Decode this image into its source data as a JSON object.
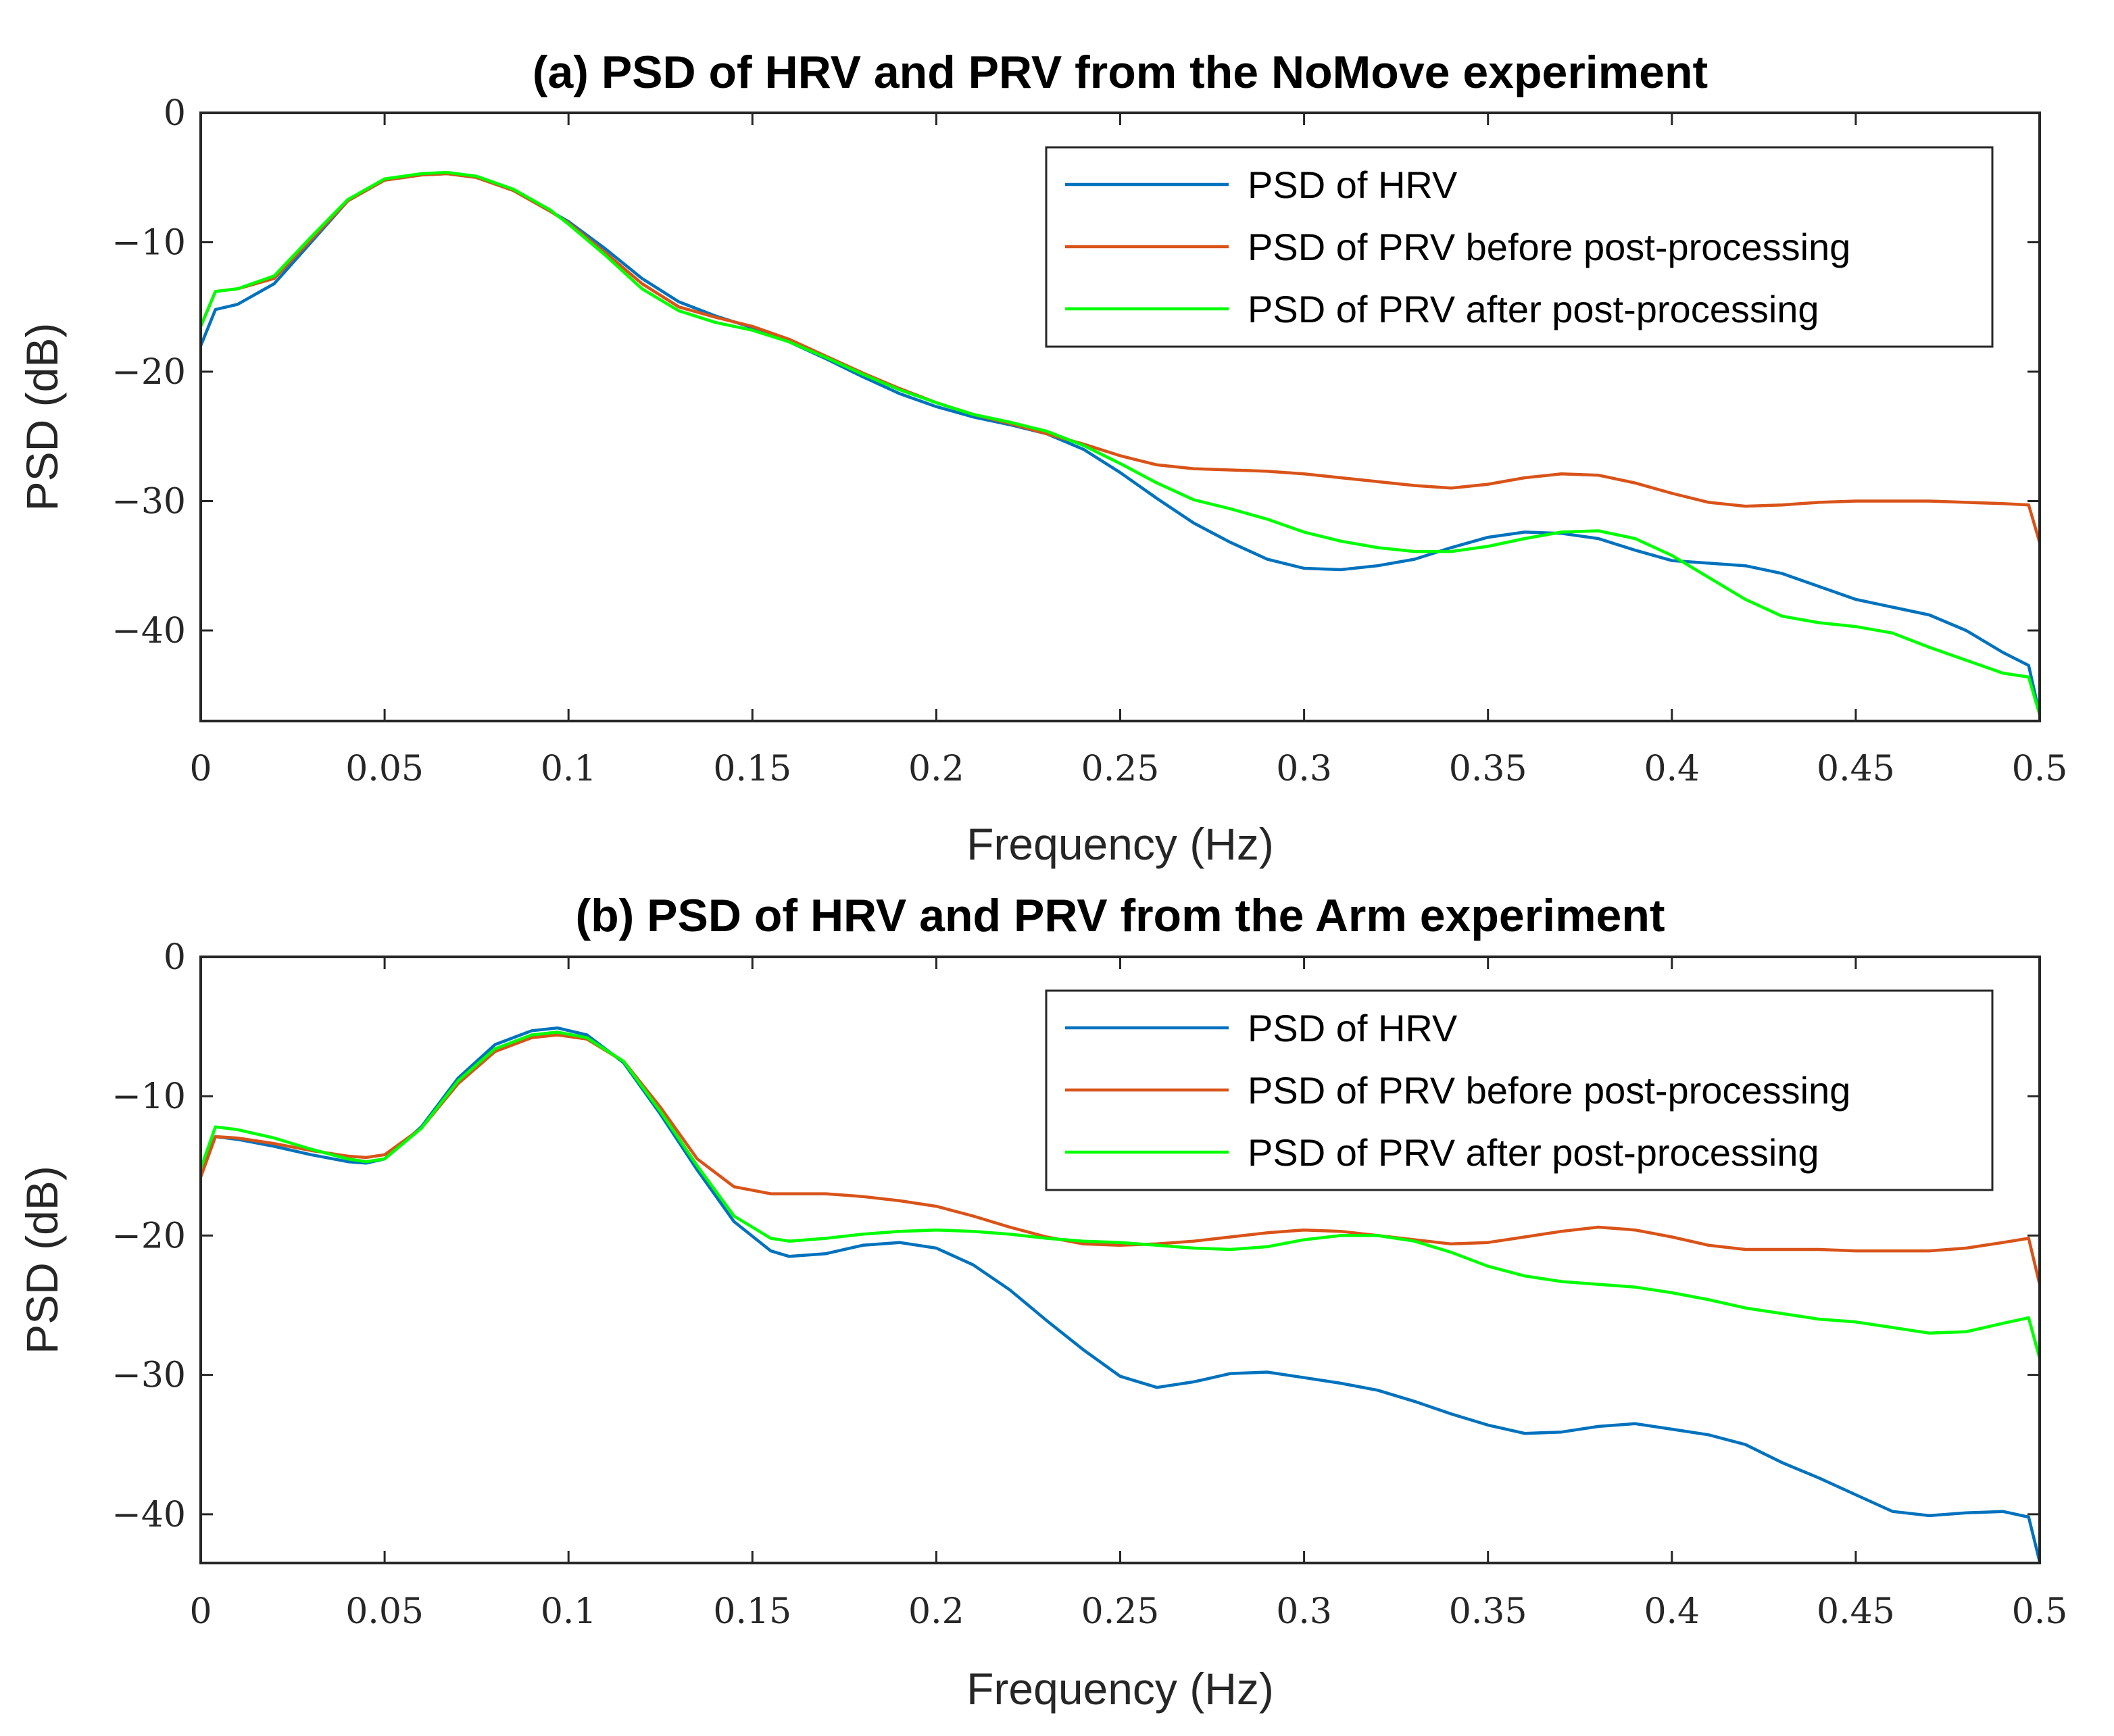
{
  "chart_data": [
    {
      "type": "line",
      "title": "(a) PSD of HRV and PRV from the NoMove experiment",
      "xlabel": "Frequency (Hz)",
      "ylabel": "PSD (dB)",
      "xlim": [
        0,
        0.5
      ],
      "ylim": [
        -47,
        0
      ],
      "xticks": [
        0,
        0.05,
        0.1,
        0.15,
        0.2,
        0.25,
        0.3,
        0.35,
        0.4,
        0.45,
        0.5
      ],
      "xtick_labels": [
        "0",
        "0.05",
        "0.1",
        "0.15",
        "0.2",
        "0.25",
        "0.3",
        "0.35",
        "0.4",
        "0.45",
        "0.5"
      ],
      "yticks": [
        0,
        -10,
        -20,
        -30,
        -40
      ],
      "ytick_labels": [
        "0",
        "−10",
        "−20",
        "−30",
        "−40"
      ],
      "legend_position": "top-right",
      "series": [
        {
          "name": "PSD of HRV",
          "color": "#0072BD",
          "x": [
            0,
            0.004,
            0.01,
            0.02,
            0.03,
            0.04,
            0.05,
            0.06,
            0.067,
            0.075,
            0.085,
            0.095,
            0.1,
            0.11,
            0.12,
            0.13,
            0.14,
            0.15,
            0.16,
            0.17,
            0.18,
            0.19,
            0.2,
            0.21,
            0.22,
            0.23,
            0.24,
            0.25,
            0.26,
            0.27,
            0.28,
            0.29,
            0.3,
            0.31,
            0.32,
            0.33,
            0.34,
            0.35,
            0.36,
            0.37,
            0.38,
            0.39,
            0.4,
            0.41,
            0.42,
            0.43,
            0.44,
            0.45,
            0.46,
            0.47,
            0.48,
            0.49,
            0.497,
            0.5
          ],
          "y": [
            -18,
            -15.2,
            -14.8,
            -13.2,
            -10,
            -6.8,
            -5.2,
            -4.8,
            -4.7,
            -5,
            -6,
            -7.6,
            -8.4,
            -10.5,
            -12.8,
            -14.6,
            -15.7,
            -16.6,
            -17.7,
            -19,
            -20.4,
            -21.7,
            -22.7,
            -23.5,
            -24.1,
            -24.8,
            -26,
            -27.8,
            -29.8,
            -31.7,
            -33.2,
            -34.5,
            -35.2,
            -35.3,
            -35,
            -34.5,
            -33.6,
            -32.8,
            -32.4,
            -32.5,
            -32.9,
            -33.8,
            -34.6,
            -34.8,
            -35,
            -35.6,
            -36.6,
            -37.6,
            -38.2,
            -38.8,
            -40,
            -41.7,
            -42.7,
            -46.5
          ]
        },
        {
          "name": "PSD of PRV before post-processing",
          "color": "#D95319",
          "x": [
            0,
            0.004,
            0.01,
            0.02,
            0.03,
            0.04,
            0.05,
            0.06,
            0.067,
            0.075,
            0.085,
            0.095,
            0.1,
            0.11,
            0.12,
            0.13,
            0.14,
            0.15,
            0.16,
            0.17,
            0.18,
            0.19,
            0.2,
            0.21,
            0.22,
            0.23,
            0.24,
            0.25,
            0.26,
            0.27,
            0.28,
            0.29,
            0.3,
            0.31,
            0.32,
            0.33,
            0.34,
            0.35,
            0.36,
            0.37,
            0.38,
            0.39,
            0.4,
            0.41,
            0.42,
            0.43,
            0.44,
            0.45,
            0.46,
            0.47,
            0.48,
            0.49,
            0.497,
            0.5
          ],
          "y": [
            -16.5,
            -13.8,
            -13.6,
            -12.8,
            -9.8,
            -6.8,
            -5.2,
            -4.8,
            -4.7,
            -5,
            -6,
            -7.6,
            -8.5,
            -10.8,
            -13.2,
            -15,
            -15.8,
            -16.5,
            -17.5,
            -18.8,
            -20.1,
            -21.3,
            -22.4,
            -23.3,
            -24,
            -24.8,
            -25.6,
            -26.5,
            -27.2,
            -27.5,
            -27.6,
            -27.7,
            -27.9,
            -28.2,
            -28.5,
            -28.8,
            -29,
            -28.7,
            -28.2,
            -27.9,
            -28,
            -28.6,
            -29.4,
            -30.1,
            -30.4,
            -30.3,
            -30.1,
            -30,
            -30,
            -30,
            -30.1,
            -30.2,
            -30.3,
            -33.2
          ]
        },
        {
          "name": "PSD of PRV after post-processing",
          "color": "#00FF00",
          "x": [
            0,
            0.004,
            0.01,
            0.02,
            0.03,
            0.04,
            0.05,
            0.06,
            0.067,
            0.075,
            0.085,
            0.095,
            0.1,
            0.11,
            0.12,
            0.13,
            0.14,
            0.15,
            0.16,
            0.17,
            0.18,
            0.19,
            0.2,
            0.21,
            0.22,
            0.23,
            0.24,
            0.25,
            0.26,
            0.27,
            0.28,
            0.29,
            0.3,
            0.31,
            0.32,
            0.33,
            0.34,
            0.35,
            0.36,
            0.37,
            0.38,
            0.39,
            0.4,
            0.41,
            0.42,
            0.43,
            0.44,
            0.45,
            0.46,
            0.47,
            0.48,
            0.49,
            0.497,
            0.5
          ],
          "y": [
            -16.5,
            -13.8,
            -13.6,
            -12.6,
            -9.6,
            -6.7,
            -5.1,
            -4.7,
            -4.6,
            -4.9,
            -5.9,
            -7.5,
            -8.6,
            -11,
            -13.6,
            -15.3,
            -16.2,
            -16.8,
            -17.7,
            -18.9,
            -20.2,
            -21.4,
            -22.4,
            -23.3,
            -23.9,
            -24.6,
            -25.7,
            -27.1,
            -28.6,
            -29.9,
            -30.6,
            -31.4,
            -32.4,
            -33.1,
            -33.6,
            -33.9,
            -33.9,
            -33.5,
            -32.9,
            -32.4,
            -32.3,
            -32.9,
            -34.2,
            -35.9,
            -37.6,
            -38.9,
            -39.4,
            -39.7,
            -40.2,
            -41.3,
            -42.3,
            -43.3,
            -43.6,
            -46.5
          ]
        }
      ]
    },
    {
      "type": "line",
      "title": "(b) PSD of HRV and PRV from the Arm experiment",
      "xlabel": "Frequency (Hz)",
      "ylabel": "PSD (dB)",
      "xlim": [
        0,
        0.5
      ],
      "ylim": [
        -43.5,
        0
      ],
      "xticks": [
        0,
        0.05,
        0.1,
        0.15,
        0.2,
        0.25,
        0.3,
        0.35,
        0.4,
        0.45,
        0.5
      ],
      "xtick_labels": [
        "0",
        "0.05",
        "0.1",
        "0.15",
        "0.2",
        "0.25",
        "0.3",
        "0.35",
        "0.4",
        "0.45",
        "0.5"
      ],
      "yticks": [
        0,
        -10,
        -20,
        -30,
        -40
      ],
      "ytick_labels": [
        "0",
        "−10",
        "−20",
        "−30",
        "−40"
      ],
      "legend_position": "top-right",
      "series": [
        {
          "name": "PSD of HRV",
          "color": "#0072BD",
          "x": [
            0,
            0.004,
            0.01,
            0.02,
            0.03,
            0.04,
            0.045,
            0.05,
            0.06,
            0.07,
            0.08,
            0.09,
            0.097,
            0.105,
            0.115,
            0.125,
            0.135,
            0.145,
            0.155,
            0.16,
            0.17,
            0.18,
            0.19,
            0.2,
            0.21,
            0.22,
            0.23,
            0.24,
            0.25,
            0.26,
            0.27,
            0.28,
            0.29,
            0.3,
            0.31,
            0.32,
            0.33,
            0.34,
            0.35,
            0.36,
            0.37,
            0.38,
            0.39,
            0.4,
            0.41,
            0.42,
            0.43,
            0.44,
            0.45,
            0.46,
            0.47,
            0.48,
            0.49,
            0.497,
            0.5
          ],
          "y": [
            -15.5,
            -12.9,
            -13.1,
            -13.6,
            -14.2,
            -14.7,
            -14.8,
            -14.5,
            -12.2,
            -8.7,
            -6.3,
            -5.3,
            -5.1,
            -5.6,
            -7.6,
            -11.3,
            -15.3,
            -19,
            -21.1,
            -21.5,
            -21.3,
            -20.7,
            -20.5,
            -20.9,
            -22.1,
            -23.9,
            -26.1,
            -28.2,
            -30.1,
            -30.9,
            -30.5,
            -29.9,
            -29.8,
            -30.2,
            -30.6,
            -31.1,
            -31.9,
            -32.8,
            -33.6,
            -34.2,
            -34.1,
            -33.7,
            -33.5,
            -33.9,
            -34.3,
            -35,
            -36.3,
            -37.4,
            -38.6,
            -39.8,
            -40.1,
            -39.9,
            -39.8,
            -40.2,
            -43.4
          ]
        },
        {
          "name": "PSD of PRV before post-processing",
          "color": "#D95319",
          "x": [
            0,
            0.004,
            0.01,
            0.02,
            0.03,
            0.04,
            0.045,
            0.05,
            0.06,
            0.07,
            0.08,
            0.09,
            0.097,
            0.105,
            0.115,
            0.125,
            0.135,
            0.145,
            0.155,
            0.16,
            0.17,
            0.18,
            0.19,
            0.2,
            0.21,
            0.22,
            0.23,
            0.24,
            0.25,
            0.26,
            0.27,
            0.28,
            0.29,
            0.3,
            0.31,
            0.32,
            0.33,
            0.34,
            0.35,
            0.36,
            0.37,
            0.38,
            0.39,
            0.4,
            0.41,
            0.42,
            0.43,
            0.44,
            0.45,
            0.46,
            0.47,
            0.48,
            0.49,
            0.497,
            0.5
          ],
          "y": [
            -15.8,
            -12.9,
            -13,
            -13.4,
            -13.9,
            -14.3,
            -14.4,
            -14.2,
            -12.3,
            -9.1,
            -6.8,
            -5.8,
            -5.6,
            -5.9,
            -7.5,
            -10.8,
            -14.5,
            -16.5,
            -17,
            -17,
            -17,
            -17.2,
            -17.5,
            -17.9,
            -18.6,
            -19.4,
            -20.1,
            -20.6,
            -20.7,
            -20.6,
            -20.4,
            -20.1,
            -19.8,
            -19.6,
            -19.7,
            -20,
            -20.3,
            -20.6,
            -20.5,
            -20.1,
            -19.7,
            -19.4,
            -19.6,
            -20.1,
            -20.7,
            -21,
            -21,
            -21,
            -21.1,
            -21.1,
            -21.1,
            -20.9,
            -20.5,
            -20.2,
            -23.5
          ]
        },
        {
          "name": "PSD of PRV after post-processing",
          "color": "#00FF00",
          "x": [
            0,
            0.004,
            0.01,
            0.02,
            0.03,
            0.04,
            0.045,
            0.05,
            0.06,
            0.07,
            0.08,
            0.09,
            0.097,
            0.105,
            0.115,
            0.125,
            0.135,
            0.145,
            0.155,
            0.16,
            0.17,
            0.18,
            0.19,
            0.2,
            0.21,
            0.22,
            0.23,
            0.24,
            0.25,
            0.26,
            0.27,
            0.28,
            0.29,
            0.3,
            0.31,
            0.32,
            0.33,
            0.34,
            0.35,
            0.36,
            0.37,
            0.38,
            0.39,
            0.4,
            0.41,
            0.42,
            0.43,
            0.44,
            0.45,
            0.46,
            0.47,
            0.48,
            0.49,
            0.497,
            0.5
          ],
          "y": [
            -15.2,
            -12.2,
            -12.4,
            -13,
            -13.8,
            -14.5,
            -14.7,
            -14.5,
            -12.3,
            -8.9,
            -6.6,
            -5.6,
            -5.4,
            -5.8,
            -7.5,
            -11.1,
            -15,
            -18.6,
            -20.2,
            -20.4,
            -20.2,
            -19.9,
            -19.7,
            -19.6,
            -19.7,
            -19.9,
            -20.2,
            -20.4,
            -20.5,
            -20.7,
            -20.9,
            -21,
            -20.8,
            -20.3,
            -20,
            -20,
            -20.4,
            -21.2,
            -22.2,
            -22.9,
            -23.3,
            -23.5,
            -23.7,
            -24.1,
            -24.6,
            -25.2,
            -25.6,
            -26,
            -26.2,
            -26.6,
            -27,
            -26.9,
            -26.3,
            -25.9,
            -28.8
          ]
        }
      ]
    }
  ]
}
